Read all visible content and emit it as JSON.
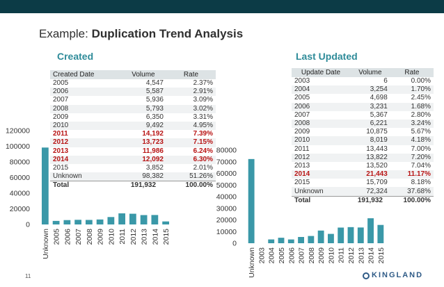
{
  "slide": {
    "title_prefix": "Example:",
    "title_bold": "Duplication Trend Analysis",
    "page_number": "11",
    "logo_text": "KINGLAND"
  },
  "created": {
    "heading": "Created",
    "columns": [
      "Created Date",
      "Volume",
      "Rate"
    ],
    "rows": [
      {
        "label": "2005",
        "volume": "4,547",
        "rate": "2.37%",
        "highlight": false
      },
      {
        "label": "2006",
        "volume": "5,587",
        "rate": "2.91%",
        "highlight": false
      },
      {
        "label": "2007",
        "volume": "5,936",
        "rate": "3.09%",
        "highlight": false
      },
      {
        "label": "2008",
        "volume": "5,793",
        "rate": "3.02%",
        "highlight": false
      },
      {
        "label": "2009",
        "volume": "6,350",
        "rate": "3.31%",
        "highlight": false
      },
      {
        "label": "2010",
        "volume": "9,492",
        "rate": "4.95%",
        "highlight": false
      },
      {
        "label": "2011",
        "volume": "14,192",
        "rate": "7.39%",
        "highlight": true
      },
      {
        "label": "2012",
        "volume": "13,723",
        "rate": "7.15%",
        "highlight": true
      },
      {
        "label": "2013",
        "volume": "11,986",
        "rate": "6.24%",
        "highlight": true
      },
      {
        "label": "2014",
        "volume": "12,092",
        "rate": "6.30%",
        "highlight": true
      },
      {
        "label": "2015",
        "volume": "3,852",
        "rate": "2.01%",
        "highlight": false
      },
      {
        "label": "Unknown",
        "volume": "98,382",
        "rate": "51.26%",
        "highlight": false
      }
    ],
    "total": {
      "label": "Total",
      "volume": "191,932",
      "rate": "100.00%"
    }
  },
  "updated": {
    "heading": "Last Updated",
    "columns": [
      "Update Date",
      "Volume",
      "Rate"
    ],
    "rows": [
      {
        "label": "2003",
        "volume": "6",
        "rate": "0.00%",
        "highlight": false
      },
      {
        "label": "2004",
        "volume": "3,254",
        "rate": "1.70%",
        "highlight": false
      },
      {
        "label": "2005",
        "volume": "4,698",
        "rate": "2.45%",
        "highlight": false
      },
      {
        "label": "2006",
        "volume": "3,231",
        "rate": "1.68%",
        "highlight": false
      },
      {
        "label": "2007",
        "volume": "5,367",
        "rate": "2.80%",
        "highlight": false
      },
      {
        "label": "2008",
        "volume": "6,221",
        "rate": "3.24%",
        "highlight": false
      },
      {
        "label": "2009",
        "volume": "10,875",
        "rate": "5.67%",
        "highlight": false
      },
      {
        "label": "2010",
        "volume": "8,019",
        "rate": "4.18%",
        "highlight": false
      },
      {
        "label": "2011",
        "volume": "13,443",
        "rate": "7.00%",
        "highlight": false
      },
      {
        "label": "2012",
        "volume": "13,822",
        "rate": "7.20%",
        "highlight": false
      },
      {
        "label": "2013",
        "volume": "13,520",
        "rate": "7.04%",
        "highlight": false
      },
      {
        "label": "2014",
        "volume": "21,443",
        "rate": "11.17%",
        "highlight": true
      },
      {
        "label": "2015",
        "volume": "15,709",
        "rate": "8.18%",
        "highlight": false
      },
      {
        "label": "Unknown",
        "volume": "72,324",
        "rate": "37.68%",
        "highlight": false
      }
    ],
    "total": {
      "label": "Total",
      "volume": "191,932",
      "rate": "100.00%"
    }
  },
  "colors": {
    "bar": "#3a98a8",
    "highlight_text": "#b81414",
    "heading": "#2e8b99",
    "top_bar": "#0c3b46"
  },
  "chart_data": [
    {
      "type": "bar",
      "title": "",
      "categories": [
        "Unknown",
        "2005",
        "2006",
        "2007",
        "2008",
        "2009",
        "2010",
        "2011",
        "2012",
        "2013",
        "2014",
        "2015"
      ],
      "values": [
        98382,
        4547,
        5587,
        5936,
        5793,
        6350,
        9492,
        14192,
        13723,
        11986,
        12092,
        3852
      ],
      "ylim": [
        0,
        120000
      ],
      "yticks": [
        0,
        20000,
        40000,
        60000,
        80000,
        100000,
        120000
      ],
      "xlabel": "",
      "ylabel": "",
      "grid": false,
      "legend": "none"
    },
    {
      "type": "bar",
      "title": "",
      "categories": [
        "Unknown",
        "2003",
        "2004",
        "2005",
        "2006",
        "2007",
        "2008",
        "2009",
        "2010",
        "2011",
        "2012",
        "2013",
        "2014",
        "2015"
      ],
      "values": [
        72324,
        6,
        3254,
        4698,
        3231,
        5367,
        6221,
        10875,
        8019,
        13443,
        13822,
        13520,
        21443,
        15709
      ],
      "ylim": [
        0,
        80000
      ],
      "yticks": [
        0,
        10000,
        20000,
        30000,
        40000,
        50000,
        60000,
        70000,
        80000
      ],
      "xlabel": "",
      "ylabel": "",
      "grid": false,
      "legend": "none"
    }
  ]
}
